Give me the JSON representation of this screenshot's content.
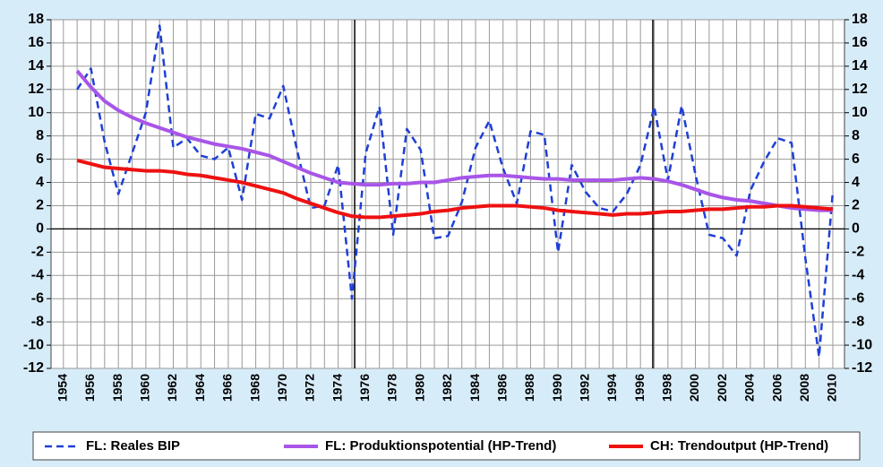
{
  "chart_data": {
    "type": "line",
    "x": [
      1955,
      1956,
      1957,
      1958,
      1959,
      1960,
      1961,
      1962,
      1963,
      1964,
      1965,
      1966,
      1967,
      1968,
      1969,
      1970,
      1971,
      1972,
      1973,
      1974,
      1975,
      1976,
      1977,
      1978,
      1979,
      1980,
      1981,
      1982,
      1983,
      1984,
      1985,
      1986,
      1987,
      1988,
      1989,
      1990,
      1991,
      1992,
      1993,
      1994,
      1995,
      1996,
      1997,
      1998,
      1999,
      2000,
      2001,
      2002,
      2003,
      2004,
      2005,
      2006,
      2007,
      2008,
      2009,
      2010
    ],
    "series": [
      {
        "name": "FL: Reales BIP",
        "color": "#1f3fd6",
        "dash": true,
        "values": [
          12,
          13.8,
          7.5,
          3,
          6.5,
          10,
          17.5,
          7,
          7.8,
          6.3,
          6,
          7,
          2.5,
          9.9,
          9.5,
          12.3,
          6.8,
          1.8,
          2,
          5.5,
          -6,
          6.5,
          10.5,
          -0.5,
          8.6,
          6.8,
          -0.8,
          -0.6,
          2.3,
          7,
          9.3,
          5.2,
          2.2,
          8.4,
          8.1,
          -2,
          5.5,
          3.2,
          1.8,
          1.5,
          3,
          5.5,
          10.5,
          4.2,
          10.6,
          4.7,
          -0.5,
          -0.8,
          -2.3,
          3.3,
          5.8,
          7.8,
          7.4,
          -2.5,
          -11,
          3.2
        ]
      },
      {
        "name": "FL: Produktionspotential (HP-Trend)",
        "color": "#a855e8",
        "dash": false,
        "values": [
          13.6,
          12.2,
          11,
          10.2,
          9.6,
          9.1,
          8.7,
          8.3,
          7.9,
          7.6,
          7.3,
          7.1,
          6.9,
          6.6,
          6.3,
          5.8,
          5.3,
          4.8,
          4.4,
          4.0,
          3.9,
          3.8,
          3.8,
          3.9,
          3.9,
          4.0,
          4.0,
          4.2,
          4.4,
          4.5,
          4.6,
          4.6,
          4.5,
          4.4,
          4.3,
          4.3,
          4.2,
          4.2,
          4.2,
          4.2,
          4.3,
          4.4,
          4.3,
          4.1,
          3.8,
          3.4,
          3.0,
          2.7,
          2.5,
          2.4,
          2.2,
          2.0,
          1.8,
          1.7,
          1.6,
          1.6
        ]
      },
      {
        "name": "CH: Trendoutput (HP-Trend)",
        "color": "#ee1111",
        "dash": false,
        "values": [
          5.9,
          5.6,
          5.3,
          5.2,
          5.1,
          5.0,
          5.0,
          4.9,
          4.7,
          4.6,
          4.4,
          4.2,
          4.0,
          3.7,
          3.4,
          3.1,
          2.6,
          2.2,
          1.8,
          1.4,
          1.1,
          1.0,
          1.0,
          1.1,
          1.2,
          1.3,
          1.5,
          1.6,
          1.8,
          1.9,
          2.0,
          2.0,
          2.0,
          1.9,
          1.8,
          1.6,
          1.5,
          1.4,
          1.3,
          1.2,
          1.3,
          1.3,
          1.4,
          1.5,
          1.5,
          1.6,
          1.7,
          1.7,
          1.8,
          1.9,
          1.9,
          2.0,
          2.0,
          1.9,
          1.8,
          1.7
        ]
      }
    ],
    "xlim": [
      1953.1,
      2010.85
    ],
    "xticks": [
      1954,
      1956,
      1958,
      1960,
      1962,
      1964,
      1966,
      1968,
      1970,
      1972,
      1974,
      1976,
      1978,
      1980,
      1982,
      1984,
      1986,
      1988,
      1990,
      1992,
      1994,
      1996,
      1998,
      2000,
      2002,
      2004,
      2006,
      2008,
      2010
    ],
    "ylim": [
      -12,
      18
    ],
    "yticks": [
      -12,
      -10,
      -8,
      -6,
      -4,
      -2,
      0,
      2,
      4,
      6,
      8,
      10,
      12,
      14,
      16,
      18
    ],
    "vlines": [
      1975.2,
      1996.9
    ],
    "grid": true,
    "legend": "bottom"
  }
}
